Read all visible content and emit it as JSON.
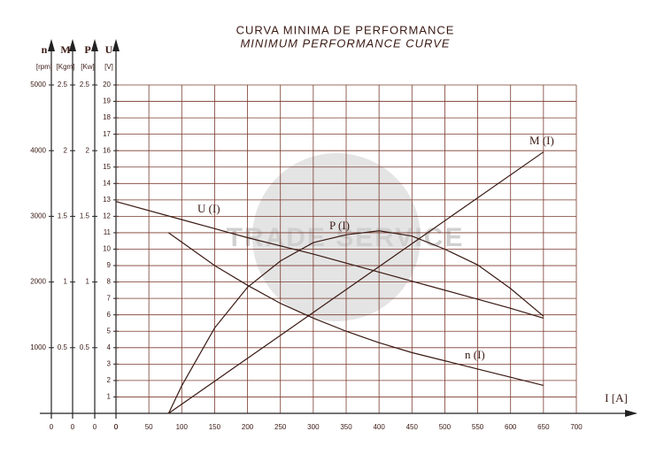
{
  "chart_data": {
    "type": "line",
    "title": "CURVA MINIMA DE PERFORMANCE",
    "subtitle": "MINIMUM PERFORMANCE CURVE",
    "watermark": "TRADE SERVICE",
    "x_label": "I [A]",
    "xlim": [
      0,
      700
    ],
    "xticks": [
      0,
      50,
      100,
      150,
      200,
      250,
      300,
      350,
      400,
      450,
      500,
      550,
      600,
      650,
      700
    ],
    "grid": true,
    "color": "#7a3b2e",
    "axes": [
      {
        "name": "n",
        "unit": "[rpm]",
        "ylim": [
          0,
          5000
        ],
        "yticks": [
          0,
          1000,
          2000,
          3000,
          4000,
          5000
        ]
      },
      {
        "name": "M",
        "unit": "[Kgm]",
        "ylim": [
          0,
          2.5
        ],
        "yticks": [
          0,
          0.5,
          1,
          1.5,
          2,
          2.5
        ]
      },
      {
        "name": "P",
        "unit": "[Kw]",
        "ylim": [
          0,
          2.5
        ],
        "yticks": [
          0,
          0.5,
          1,
          1.5,
          2,
          2.5
        ]
      },
      {
        "name": "U",
        "unit": "[V]",
        "ylim": [
          0,
          20
        ],
        "yticks": [
          0,
          1,
          2,
          3,
          4,
          5,
          6,
          7,
          8,
          9,
          10,
          11,
          12,
          13,
          14,
          15,
          16,
          17,
          18,
          19,
          20
        ]
      }
    ],
    "series": [
      {
        "name": "n (I)",
        "axis": "n",
        "x": [
          80,
          150,
          200,
          250,
          300,
          350,
          400,
          450,
          500,
          550,
          600,
          650
        ],
        "values": [
          2750,
          2250,
          1950,
          1675,
          1450,
          1250,
          1075,
          925,
          800,
          675,
          550,
          425
        ]
      },
      {
        "name": "M (I)",
        "axis": "M",
        "x": [
          80,
          650
        ],
        "values": [
          0,
          1.99
        ]
      },
      {
        "name": "P (I)",
        "axis": "P",
        "x": [
          80,
          100,
          150,
          200,
          250,
          300,
          350,
          400,
          450,
          500,
          550,
          600,
          650
        ],
        "values": [
          0,
          0.21,
          0.65,
          0.96,
          1.16,
          1.3,
          1.36,
          1.39,
          1.35,
          1.25,
          1.13,
          0.95,
          0.74
        ]
      },
      {
        "name": "U (I)",
        "axis": "U",
        "x": [
          0,
          100,
          200,
          300,
          400,
          500,
          600,
          650
        ],
        "values": [
          12.9,
          11.8,
          10.7,
          9.7,
          8.6,
          7.5,
          6.4,
          5.8
        ]
      }
    ]
  }
}
